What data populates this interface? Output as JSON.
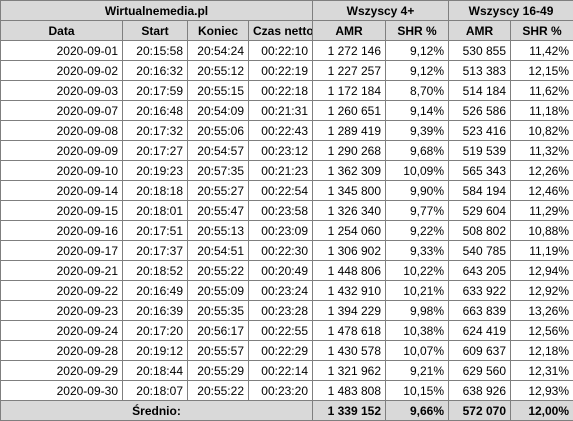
{
  "header": {
    "groups": [
      "Wirtualnemedia.pl",
      "Wszyscy 4+",
      "Wszyscy 16-49"
    ],
    "columns": [
      "Data",
      "Start",
      "Koniec",
      "Czas netto",
      "AMR",
      "SHR %",
      "AMR",
      "SHR %"
    ]
  },
  "table": {
    "rows": [
      [
        "2020-09-01",
        "20:15:58",
        "20:54:24",
        "00:22:10",
        "1 272 146",
        "9,12%",
        "530 855",
        "11,42%"
      ],
      [
        "2020-09-02",
        "20:16:32",
        "20:55:12",
        "00:22:19",
        "1 227 257",
        "9,12%",
        "513 383",
        "12,15%"
      ],
      [
        "2020-09-03",
        "20:17:59",
        "20:55:15",
        "00:22:18",
        "1 172 184",
        "8,70%",
        "514 184",
        "11,62%"
      ],
      [
        "2020-09-07",
        "20:16:48",
        "20:54:09",
        "00:21:31",
        "1 260 651",
        "9,14%",
        "526 586",
        "11,18%"
      ],
      [
        "2020-09-08",
        "20:17:32",
        "20:55:06",
        "00:22:43",
        "1 289 419",
        "9,39%",
        "523 416",
        "10,82%"
      ],
      [
        "2020-09-09",
        "20:17:27",
        "20:54:57",
        "00:23:12",
        "1 290 268",
        "9,68%",
        "519 539",
        "11,32%"
      ],
      [
        "2020-09-10",
        "20:19:23",
        "20:57:35",
        "00:21:23",
        "1 362 309",
        "10,09%",
        "565 343",
        "12,26%"
      ],
      [
        "2020-09-14",
        "20:18:18",
        "20:55:27",
        "00:22:54",
        "1 345 800",
        "9,90%",
        "584 194",
        "12,46%"
      ],
      [
        "2020-09-15",
        "20:18:01",
        "20:55:47",
        "00:23:58",
        "1 326 340",
        "9,77%",
        "529 604",
        "11,29%"
      ],
      [
        "2020-09-16",
        "20:17:51",
        "20:55:13",
        "00:23:09",
        "1 254 060",
        "9,22%",
        "508 802",
        "10,88%"
      ],
      [
        "2020-09-17",
        "20:17:37",
        "20:54:51",
        "00:22:30",
        "1 306 902",
        "9,33%",
        "540 785",
        "11,19%"
      ],
      [
        "2020-09-21",
        "20:18:52",
        "20:55:22",
        "00:20:49",
        "1 448 806",
        "10,22%",
        "643 205",
        "12,94%"
      ],
      [
        "2020-09-22",
        "20:16:49",
        "20:55:09",
        "00:23:24",
        "1 432 910",
        "10,21%",
        "633 922",
        "12,92%"
      ],
      [
        "2020-09-23",
        "20:16:39",
        "20:55:35",
        "00:23:28",
        "1 394 229",
        "9,98%",
        "663 839",
        "13,26%"
      ],
      [
        "2020-09-24",
        "20:17:20",
        "20:56:17",
        "00:22:55",
        "1 478 618",
        "10,38%",
        "624 419",
        "12,56%"
      ],
      [
        "2020-09-28",
        "20:19:12",
        "20:55:57",
        "00:22:29",
        "1 430 578",
        "10,07%",
        "609 637",
        "12,18%"
      ],
      [
        "2020-09-29",
        "20:18:44",
        "20:55:29",
        "00:22:14",
        "1 321 962",
        "9,21%",
        "629 560",
        "12,31%"
      ],
      [
        "2020-09-30",
        "20:18:07",
        "20:55:22",
        "00:23:20",
        "1 483 808",
        "10,15%",
        "638 926",
        "12,93%"
      ]
    ]
  },
  "footer": {
    "label": "Średnio:",
    "values": [
      "1 339 152",
      "9,66%",
      "572 070",
      "12,00%"
    ]
  }
}
